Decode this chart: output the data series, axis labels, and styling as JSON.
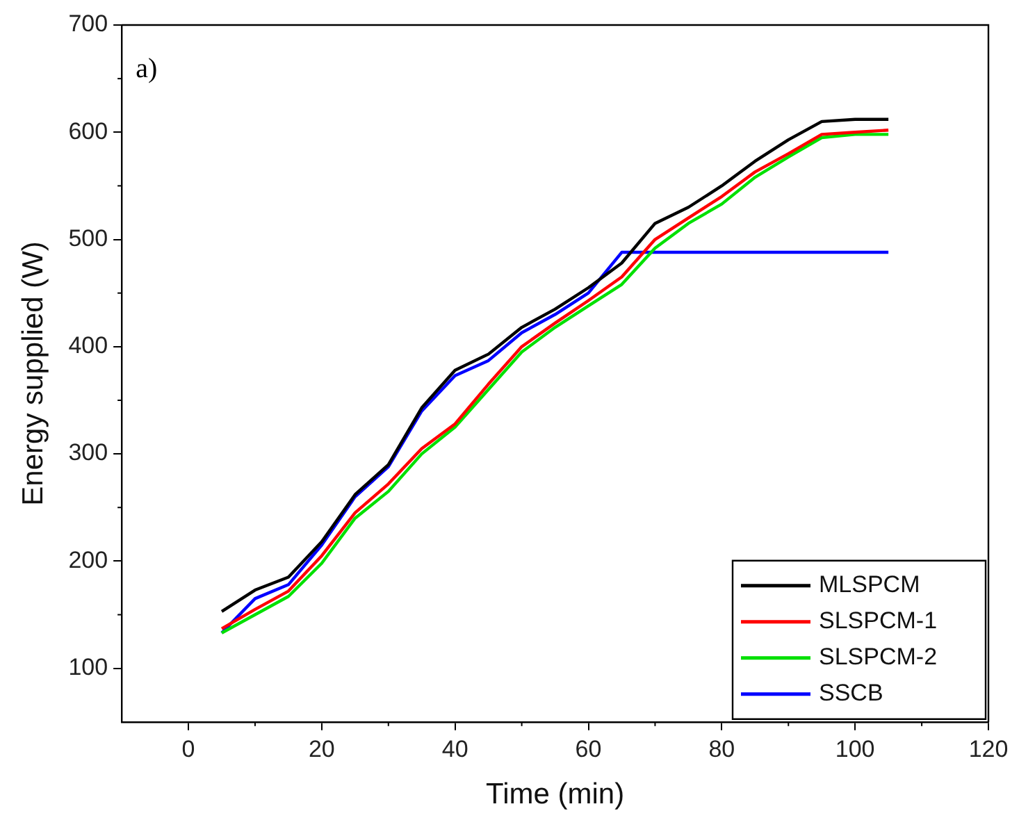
{
  "chart_data": {
    "type": "line",
    "xlabel": "Time (min)",
    "ylabel": "Energy supplied (W)",
    "annotations": [
      "a)"
    ],
    "x": [
      5,
      10,
      15,
      20,
      25,
      30,
      35,
      40,
      45,
      50,
      55,
      60,
      65,
      70,
      75,
      80,
      85,
      90,
      95,
      100,
      105
    ],
    "series": [
      {
        "name": "MLSPCM",
        "color": "#000000",
        "values": [
          153,
          173,
          185,
          218,
          262,
          290,
          343,
          378,
          393,
          418,
          435,
          455,
          478,
          515,
          530,
          550,
          573,
          593,
          610,
          612,
          612
        ]
      },
      {
        "name": "SLSPCM-1",
        "color": "#ff0000",
        "values": [
          137,
          155,
          172,
          205,
          245,
          272,
          305,
          328,
          365,
          400,
          422,
          443,
          465,
          500,
          520,
          540,
          563,
          580,
          598,
          600,
          602
        ]
      },
      {
        "name": "SLSPCM-2",
        "color": "#00e000",
        "values": [
          133,
          150,
          167,
          198,
          240,
          265,
          300,
          325,
          360,
          395,
          418,
          438,
          458,
          492,
          515,
          533,
          558,
          577,
          595,
          598,
          598
        ]
      },
      {
        "name": "SSCB",
        "color": "#0000ff",
        "values": [
          133,
          165,
          178,
          215,
          260,
          288,
          340,
          373,
          387,
          413,
          430,
          450,
          488,
          488,
          488,
          488,
          488,
          488,
          488,
          488,
          488
        ]
      }
    ],
    "xlim": [
      -10,
      120
    ],
    "xticks": [
      0,
      20,
      40,
      60,
      80,
      100,
      120
    ],
    "ylim": [
      50,
      700
    ],
    "yticks": [
      100,
      200,
      300,
      400,
      500,
      600,
      700
    ],
    "grid": false,
    "legend": "bottom right",
    "marker": "none",
    "line_style": "solid"
  }
}
